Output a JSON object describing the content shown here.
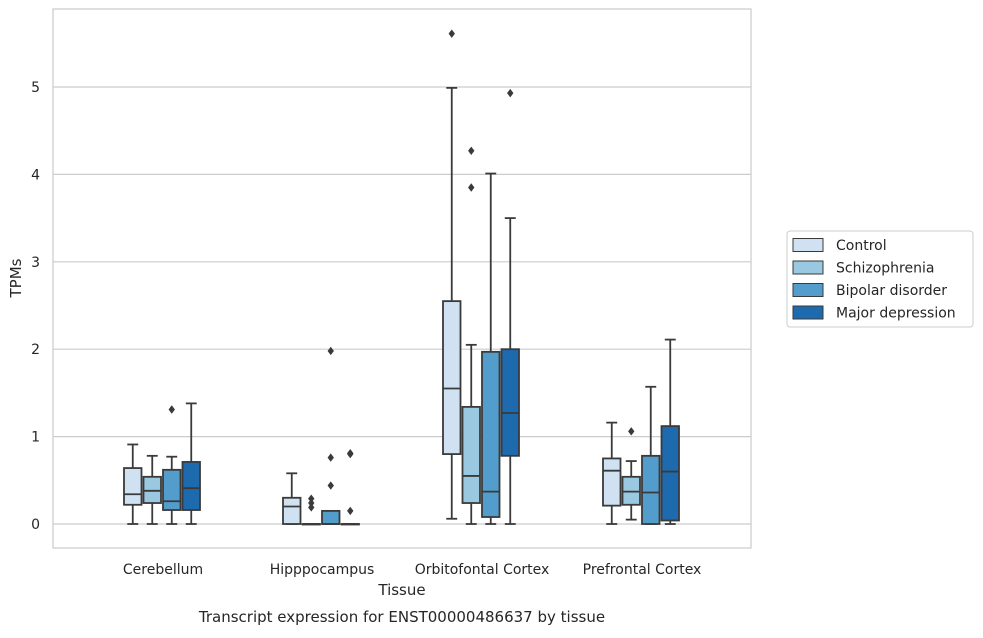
{
  "chart_data": {
    "type": "box",
    "xlabel": "Tissue",
    "ylabel": "TPMs",
    "caption": "Transcript expression for ENST00000486637 by tissue",
    "ylim": [
      -0.27,
      5.9
    ],
    "yticks": [
      0,
      1,
      2,
      3,
      4,
      5
    ],
    "grid": "horizontal",
    "legend_placement": "right",
    "categories": [
      "Cerebellum",
      "Hipppocampus",
      "Orbitofontal Cortex",
      "Prefrontal Cortex"
    ],
    "series": [
      {
        "name": "Control",
        "color": "#d0e2f2",
        "boxes": [
          {
            "min": 0.0,
            "q1": 0.22,
            "median": 0.34,
            "q3": 0.64,
            "max": 0.91,
            "outliers": []
          },
          {
            "min": 0.0,
            "q1": 0.0,
            "median": 0.2,
            "q3": 0.3,
            "max": 0.58,
            "outliers": []
          },
          {
            "min": 0.06,
            "q1": 0.8,
            "median": 1.55,
            "q3": 2.55,
            "max": 4.99,
            "outliers": [
              5.61
            ]
          },
          {
            "min": 0.0,
            "q1": 0.21,
            "median": 0.61,
            "q3": 0.75,
            "max": 1.16,
            "outliers": []
          }
        ]
      },
      {
        "name": "Schizophrenia",
        "color": "#9ac8e0",
        "boxes": [
          {
            "min": 0.0,
            "q1": 0.24,
            "median": 0.38,
            "q3": 0.54,
            "max": 0.78,
            "outliers": []
          },
          {
            "min": 0.0,
            "q1": 0.0,
            "median": 0.0,
            "q3": 0.0,
            "max": 0.0,
            "outliers": [
              0.29,
              0.24,
              0.19
            ]
          },
          {
            "min": 0.0,
            "q1": 0.24,
            "median": 0.55,
            "q3": 1.34,
            "max": 2.05,
            "outliers": [
              3.85,
              4.27
            ]
          },
          {
            "min": 0.05,
            "q1": 0.22,
            "median": 0.37,
            "q3": 0.54,
            "max": 0.72,
            "outliers": [
              1.06
            ]
          }
        ]
      },
      {
        "name": "Bipolar disorder",
        "color": "#529dcc",
        "boxes": [
          {
            "min": 0.0,
            "q1": 0.16,
            "median": 0.26,
            "q3": 0.62,
            "max": 0.77,
            "outliers": [
              1.31
            ]
          },
          {
            "min": 0.0,
            "q1": 0.0,
            "median": 0.0,
            "q3": 0.15,
            "max": 0.15,
            "outliers": [
              0.44,
              0.76,
              1.98
            ]
          },
          {
            "min": 0.0,
            "q1": 0.08,
            "median": 0.37,
            "q3": 1.97,
            "max": 4.01,
            "outliers": []
          },
          {
            "min": 0.0,
            "q1": 0.0,
            "median": 0.36,
            "q3": 0.78,
            "max": 1.57,
            "outliers": []
          }
        ]
      },
      {
        "name": "Major depression",
        "color": "#1d6aaf",
        "boxes": [
          {
            "min": 0.0,
            "q1": 0.16,
            "median": 0.41,
            "q3": 0.71,
            "max": 1.38,
            "outliers": []
          },
          {
            "min": 0.0,
            "q1": 0.0,
            "median": 0.0,
            "q3": 0.0,
            "max": 0.0,
            "outliers": [
              0.15,
              0.8,
              0.81
            ]
          },
          {
            "min": 0.0,
            "q1": 0.78,
            "median": 1.27,
            "q3": 2.0,
            "max": 3.5,
            "outliers": [
              4.93
            ]
          },
          {
            "min": 0.0,
            "q1": 0.04,
            "median": 0.6,
            "q3": 1.12,
            "max": 2.11,
            "outliers": []
          }
        ]
      }
    ]
  }
}
